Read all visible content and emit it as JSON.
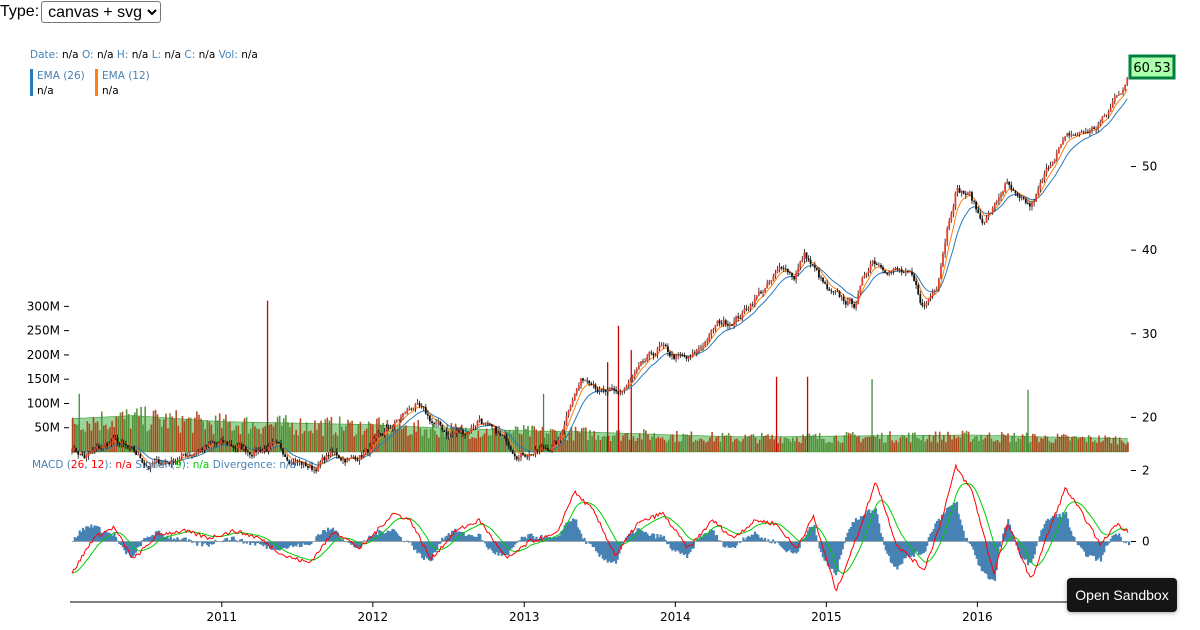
{
  "controls": {
    "type_label": "Type:",
    "type_selected": "canvas + svg"
  },
  "tooltip": {
    "date_label": "Date:",
    "date_value": "n/a",
    "open_label": "O:",
    "open_value": "n/a",
    "high_label": "H:",
    "high_value": "n/a",
    "low_label": "L:",
    "low_value": "n/a",
    "close_label": "C:",
    "close_value": "n/a",
    "vol_label": "Vol:",
    "vol_value": "n/a"
  },
  "ema_legend": [
    {
      "label": "EMA (26)",
      "value": "n/a",
      "color": "#2a7ab9"
    },
    {
      "label": "EMA (12)",
      "value": "n/a",
      "color": "#ff7f0e"
    }
  ],
  "macd_legend": {
    "macd_label": "MACD (",
    "macd_slow": "26",
    "comma": ", ",
    "macd_fast": "12",
    "macd_close": "): ",
    "macd_value": "n/a",
    "signal_label": "Signal (",
    "signal_period": "9",
    "signal_close": "): ",
    "signal_value": "n/a",
    "divergence_label": "Divergence: ",
    "divergence_value": "n/a"
  },
  "last_price": "60.53",
  "sandbox_button": "Open Sandbox",
  "colors": {
    "label_blue": "#4682b4",
    "candle_up": "#e83e2e",
    "candle_down": "#111111",
    "ema26": "#2a7ab9",
    "ema12": "#ff7f0e",
    "volume_up": "#cc0000",
    "volume_down": "#2e7d32",
    "volume_area": "#7fc97f",
    "macd_line": "#ff0000",
    "signal_line": "#00cc00",
    "divergence": "#4682b4",
    "price_box_fill": "#aaffaa",
    "price_box_stroke": "#007f3f"
  },
  "chart_data": [
    {
      "type": "candlestick",
      "panel": "price",
      "y_axis_ticks": [
        20,
        30,
        40,
        50
      ],
      "ylim": [
        15.5,
        62.5
      ],
      "x_axis_ticks": [
        "2011",
        "2012",
        "2013",
        "2014",
        "2015",
        "2016"
      ],
      "xlim": [
        "2010-01-04",
        "2016-12-30"
      ],
      "close_points": [
        [
          "2010-01-04",
          16.5
        ],
        [
          "2010-02-05",
          15.2
        ],
        [
          "2010-04-15",
          17.2
        ],
        [
          "2010-05-20",
          16.0
        ],
        [
          "2010-07-10",
          14.2
        ],
        [
          "2010-09-01",
          14.8
        ],
        [
          "2010-11-20",
          16.5
        ],
        [
          "2011-01-20",
          16.7
        ],
        [
          "2011-03-10",
          16.0
        ],
        [
          "2011-05-01",
          16.5
        ],
        [
          "2011-06-25",
          15.0
        ],
        [
          "2011-08-10",
          13.8
        ],
        [
          "2011-09-20",
          15.6
        ],
        [
          "2011-11-10",
          15.0
        ],
        [
          "2011-12-20",
          16.0
        ],
        [
          "2012-01-20",
          17.5
        ],
        [
          "2012-03-10",
          20.0
        ],
        [
          "2012-04-10",
          21.5
        ],
        [
          "2012-05-20",
          19.5
        ],
        [
          "2012-07-01",
          18.0
        ],
        [
          "2012-08-15",
          18.3
        ],
        [
          "2012-09-15",
          20.0
        ],
        [
          "2012-10-10",
          18.4
        ],
        [
          "2012-11-20",
          17.0
        ],
        [
          "2012-12-20",
          15.8
        ],
        [
          "2013-02-10",
          16.0
        ],
        [
          "2013-03-25",
          17.0
        ],
        [
          "2013-04-25",
          22.5
        ],
        [
          "2013-05-20",
          24.5
        ],
        [
          "2013-06-15",
          24.8
        ],
        [
          "2013-07-10",
          23.0
        ],
        [
          "2013-08-15",
          22.5
        ],
        [
          "2013-09-10",
          24.0
        ],
        [
          "2013-10-15",
          26.0
        ],
        [
          "2013-11-25",
          28.3
        ],
        [
          "2013-12-20",
          27.3
        ],
        [
          "2014-02-05",
          26.7
        ],
        [
          "2014-03-05",
          28.5
        ],
        [
          "2014-04-15",
          31.2
        ],
        [
          "2014-05-10",
          31.5
        ],
        [
          "2014-06-10",
          32.3
        ],
        [
          "2014-07-15",
          34.5
        ],
        [
          "2014-08-20",
          36.0
        ],
        [
          "2014-09-20",
          38.2
        ],
        [
          "2014-10-15",
          37.0
        ],
        [
          "2014-11-10",
          39.5
        ],
        [
          "2014-12-05",
          37.5
        ],
        [
          "2015-01-10",
          34.5
        ],
        [
          "2015-02-05",
          34.0
        ],
        [
          "2015-03-10",
          33.5
        ],
        [
          "2015-04-20",
          39.0
        ],
        [
          "2015-05-20",
          38.3
        ],
        [
          "2015-06-25",
          37.5
        ],
        [
          "2015-07-25",
          36.5
        ],
        [
          "2015-08-24",
          33.0
        ],
        [
          "2015-09-25",
          36.0
        ],
        [
          "2015-10-20",
          43.0
        ],
        [
          "2015-11-10",
          47.5
        ],
        [
          "2015-12-15",
          46.5
        ],
        [
          "2016-01-10",
          43.5
        ],
        [
          "2016-02-10",
          45.0
        ],
        [
          "2016-03-10",
          48.0
        ],
        [
          "2016-04-10",
          45.5
        ],
        [
          "2016-05-10",
          45.0
        ],
        [
          "2016-06-10",
          48.5
        ],
        [
          "2016-07-10",
          52.0
        ],
        [
          "2016-08-10",
          53.5
        ],
        [
          "2016-09-10",
          54.0
        ],
        [
          "2016-10-10",
          54.5
        ],
        [
          "2016-11-15",
          56.5
        ],
        [
          "2016-12-01",
          58.5
        ],
        [
          "2016-12-30",
          60.53
        ]
      ]
    },
    {
      "type": "bar",
      "panel": "volume",
      "y_axis_ticks": [
        "50M",
        "100M",
        "150M",
        "200M",
        "250M",
        "300M"
      ],
      "y_tick_values": [
        50,
        100,
        150,
        200,
        250,
        300
      ],
      "ylim": [
        0,
        300
      ],
      "typical_volume_points": [
        [
          "2010-01-04",
          55
        ],
        [
          "2010-06-01",
          60
        ],
        [
          "2011-01-01",
          50
        ],
        [
          "2011-06-01",
          48
        ],
        [
          "2012-01-01",
          45
        ],
        [
          "2012-06-01",
          40
        ],
        [
          "2013-01-01",
          35
        ],
        [
          "2013-06-01",
          33
        ],
        [
          "2014-01-01",
          28
        ],
        [
          "2014-06-01",
          25
        ],
        [
          "2015-01-01",
          26
        ],
        [
          "2015-06-01",
          27
        ],
        [
          "2016-01-01",
          28
        ],
        [
          "2016-06-01",
          25
        ],
        [
          "2016-12-30",
          22
        ]
      ],
      "spikes": [
        [
          "2011-04-20",
          312
        ],
        [
          "2013-08-15",
          260
        ],
        [
          "2013-09-15",
          210
        ],
        [
          "2013-07-20",
          185
        ],
        [
          "2014-11-15",
          155
        ],
        [
          "2014-09-01",
          155
        ],
        [
          "2016-05-01",
          128
        ],
        [
          "2010-01-20",
          120
        ],
        [
          "2015-04-20",
          150
        ],
        [
          "2013-02-15",
          120
        ]
      ]
    },
    {
      "type": "line",
      "panel": "macd",
      "y_axis_ticks": [
        0,
        2
      ],
      "ylim": [
        -1.6,
        2.3
      ],
      "series": [
        {
          "name": "MACD",
          "color": "#ff0000"
        },
        {
          "name": "Signal",
          "color": "#00cc00"
        },
        {
          "name": "Divergence",
          "color": "#4682b4"
        }
      ],
      "macd_points": [
        [
          "2010-01-04",
          -0.9
        ],
        [
          "2010-02-25",
          0.1
        ],
        [
          "2010-04-15",
          0.4
        ],
        [
          "2010-06-01",
          -0.5
        ],
        [
          "2010-08-01",
          0.2
        ],
        [
          "2010-10-01",
          0.3
        ],
        [
          "2010-12-01",
          0.1
        ],
        [
          "2011-02-01",
          0.3
        ],
        [
          "2011-04-01",
          0.1
        ],
        [
          "2011-06-01",
          -0.4
        ],
        [
          "2011-08-01",
          -0.6
        ],
        [
          "2011-10-01",
          0.3
        ],
        [
          "2011-12-01",
          -0.2
        ],
        [
          "2012-02-20",
          0.8
        ],
        [
          "2012-04-01",
          0.6
        ],
        [
          "2012-05-20",
          -0.5
        ],
        [
          "2012-07-20",
          0.3
        ],
        [
          "2012-09-15",
          0.6
        ],
        [
          "2012-11-20",
          -0.5
        ],
        [
          "2013-01-15",
          0.0
        ],
        [
          "2013-03-20",
          0.2
        ],
        [
          "2013-05-01",
          1.4
        ],
        [
          "2013-06-15",
          0.9
        ],
        [
          "2013-08-10",
          -0.4
        ],
        [
          "2013-10-01",
          0.5
        ],
        [
          "2013-12-01",
          0.8
        ],
        [
          "2014-02-01",
          -0.2
        ],
        [
          "2014-04-01",
          0.6
        ],
        [
          "2014-05-20",
          0.1
        ],
        [
          "2014-07-15",
          0.6
        ],
        [
          "2014-09-01",
          0.5
        ],
        [
          "2014-10-20",
          -0.2
        ],
        [
          "2014-12-01",
          0.7
        ],
        [
          "2015-01-25",
          -1.4
        ],
        [
          "2015-03-15",
          0.1
        ],
        [
          "2015-05-01",
          1.7
        ],
        [
          "2015-06-20",
          -0.1
        ],
        [
          "2015-08-25",
          -0.8
        ],
        [
          "2015-10-01",
          0.4
        ],
        [
          "2015-11-10",
          2.1
        ],
        [
          "2015-12-20",
          1.4
        ],
        [
          "2016-02-10",
          -0.9
        ],
        [
          "2016-03-15",
          0.5
        ],
        [
          "2016-05-10",
          -1.1
        ],
        [
          "2016-06-25",
          0.4
        ],
        [
          "2016-08-01",
          1.5
        ],
        [
          "2016-09-15",
          0.7
        ],
        [
          "2016-10-25",
          -0.1
        ],
        [
          "2016-12-01",
          0.5
        ],
        [
          "2016-12-30",
          0.3
        ]
      ]
    }
  ]
}
